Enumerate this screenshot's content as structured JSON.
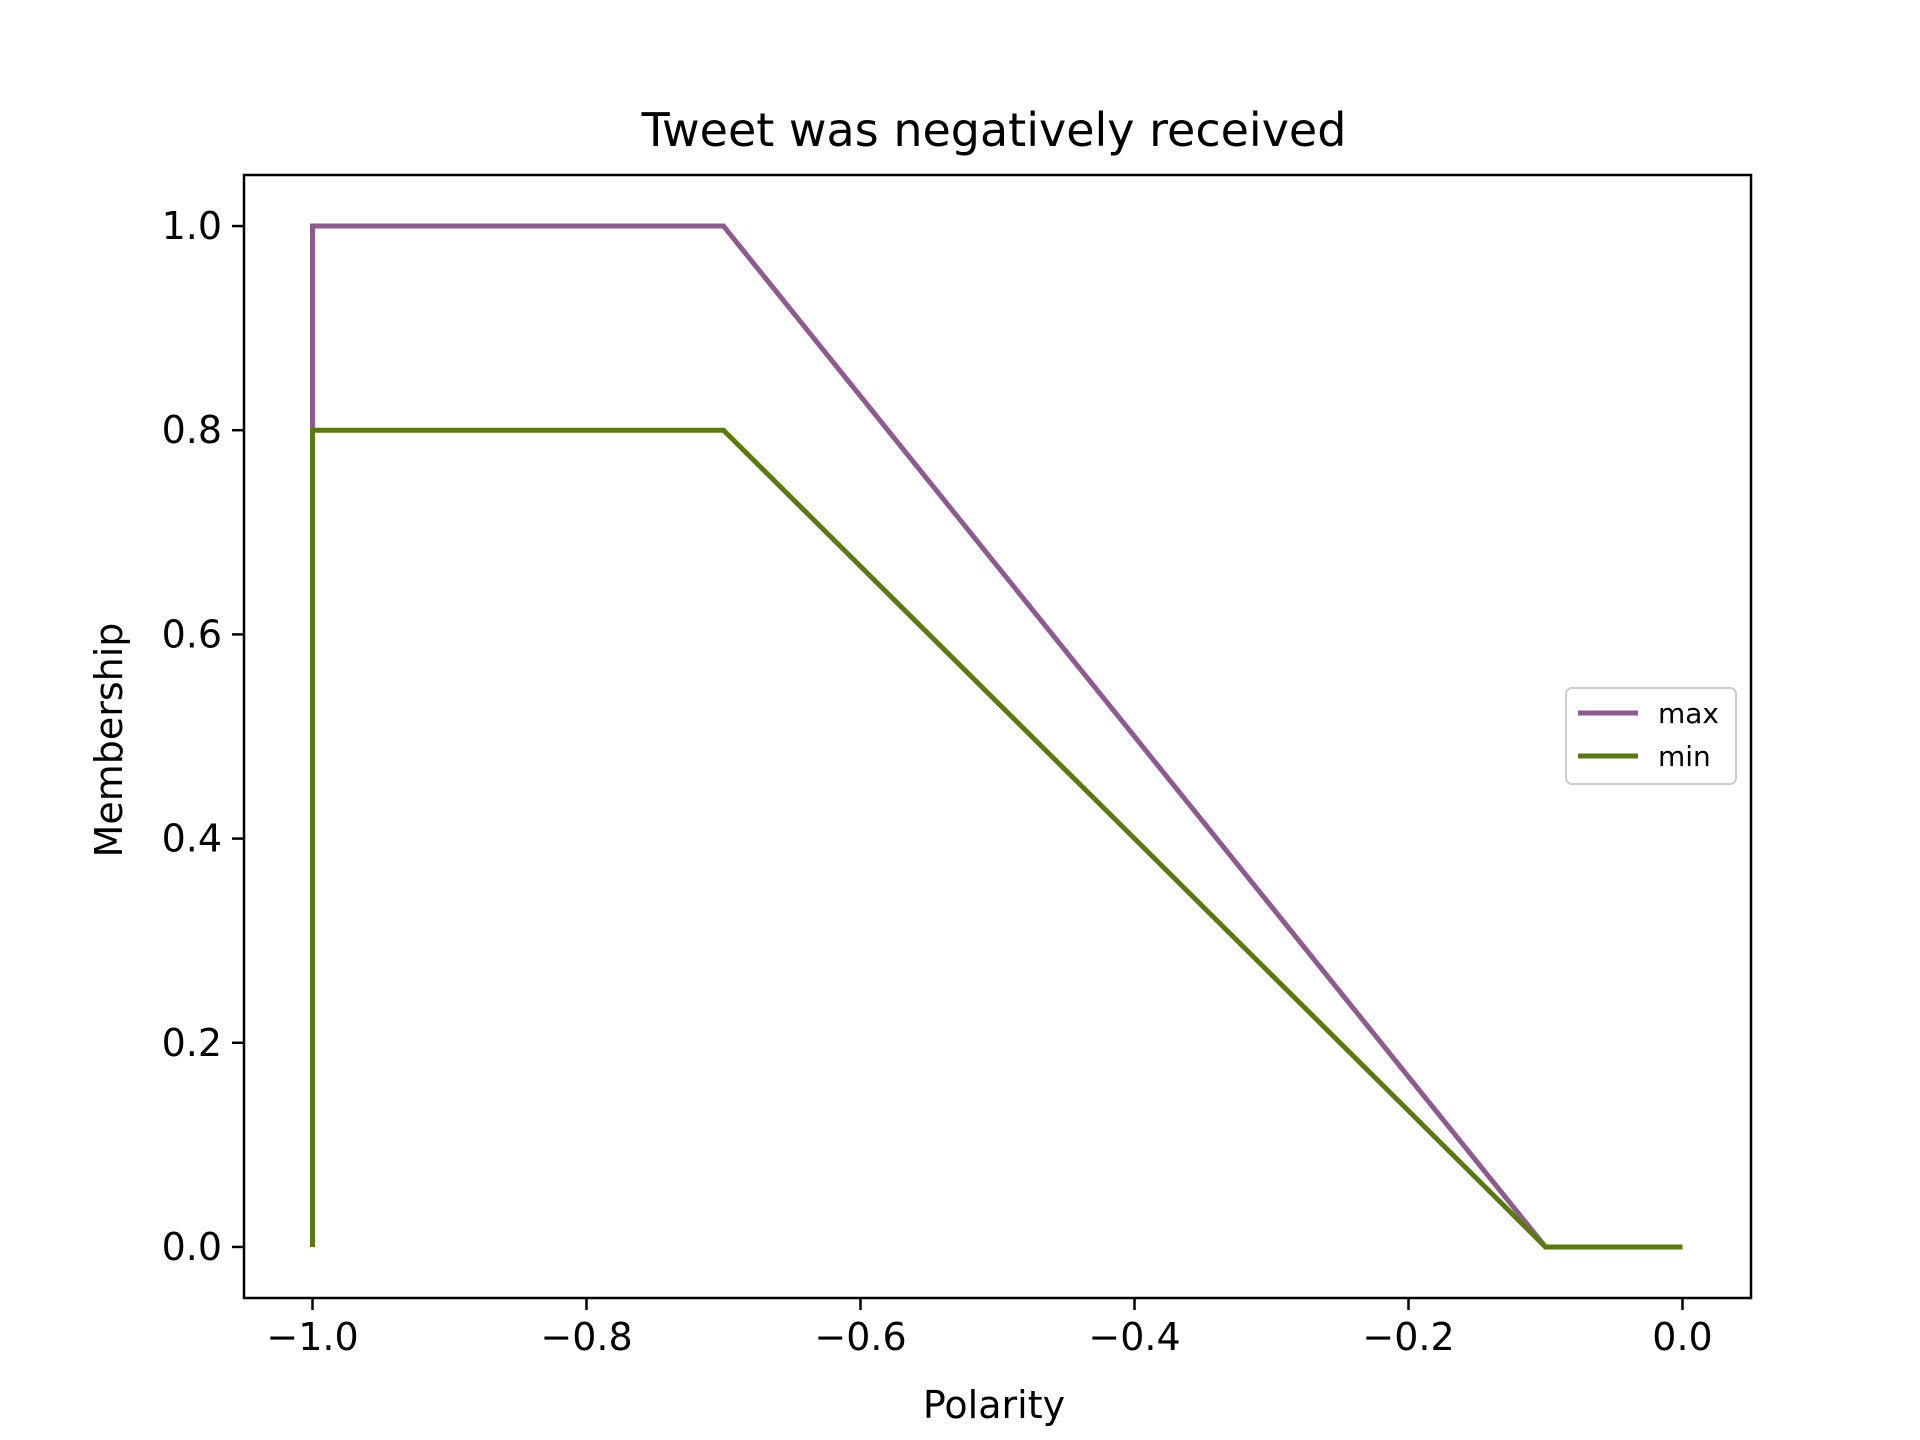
{
  "chart_data": {
    "type": "line",
    "title": "Tweet was negatively received",
    "xlabel": "Polarity",
    "ylabel": "Membership",
    "xlim": [
      -1.05,
      0.05
    ],
    "ylim": [
      -0.05,
      1.05
    ],
    "xticks": [
      -1.0,
      -0.8,
      -0.6,
      -0.4,
      -0.2,
      0.0
    ],
    "xtick_labels": [
      "−1.0",
      "−0.8",
      "−0.6",
      "−0.4",
      "−0.2",
      "0.0"
    ],
    "yticks": [
      0.0,
      0.2,
      0.4,
      0.6,
      0.8,
      1.0
    ],
    "ytick_labels": [
      "0.0",
      "0.2",
      "0.4",
      "0.6",
      "0.8",
      "1.0"
    ],
    "grid": false,
    "legend_position": "center-right",
    "series": [
      {
        "name": "max",
        "color": "#8f5a8f",
        "x": [
          -1.0,
          -1.0,
          -0.7,
          -0.1,
          0.0
        ],
        "y": [
          0.8,
          1.0,
          1.0,
          0.0,
          0.0
        ]
      },
      {
        "name": "min",
        "color": "#5a7a10",
        "x": [
          -1.0,
          -1.0,
          -0.7,
          -0.1,
          0.0
        ],
        "y": [
          0.0,
          0.8,
          0.8,
          0.0,
          0.0
        ]
      }
    ]
  }
}
